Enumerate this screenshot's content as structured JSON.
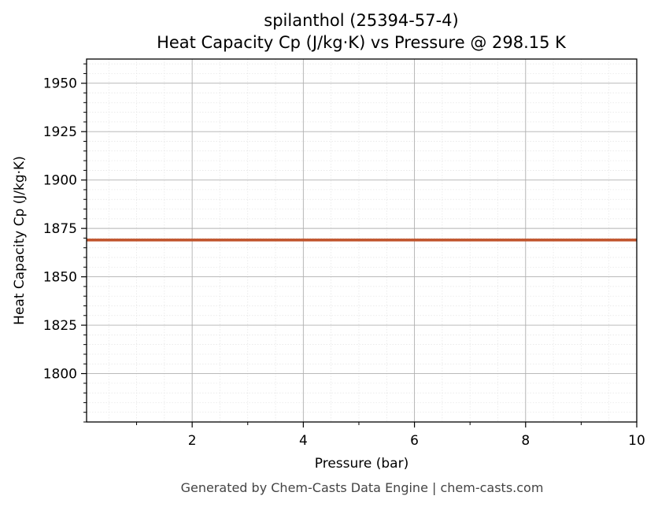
{
  "chart_data": {
    "type": "line",
    "title": "spilanthol (25394-57-4)",
    "subtitle": "Heat Capacity Cp (J/kg·K) vs Pressure @ 298.15 K",
    "xlabel": "Pressure (bar)",
    "ylabel": "Heat Capacity Cp (J/kg·K)",
    "xlim": [
      0.1,
      10
    ],
    "ylim": [
      1775,
      1962.5
    ],
    "x_ticks": [
      2,
      4,
      6,
      8,
      10
    ],
    "y_ticks": [
      1800,
      1825,
      1850,
      1875,
      1900,
      1925,
      1950
    ],
    "grid": true,
    "series": [
      {
        "color": "#c0522a",
        "x": [
          0.1,
          1,
          2,
          3,
          4,
          5,
          6,
          7,
          8,
          9,
          10
        ],
        "y": [
          1869,
          1869,
          1869,
          1869,
          1869,
          1869,
          1869,
          1869,
          1869,
          1869,
          1869
        ]
      }
    ]
  },
  "footer": "Generated by Chem-Casts Data Engine | chem-casts.com"
}
